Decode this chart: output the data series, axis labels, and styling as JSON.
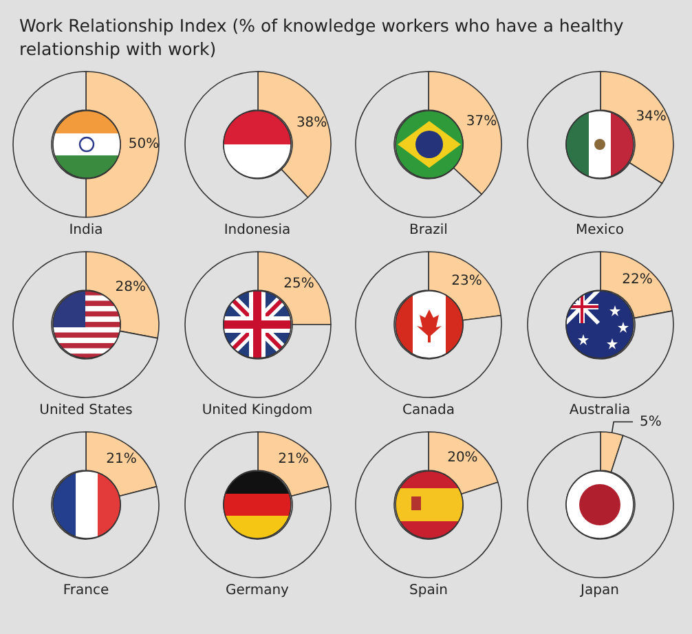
{
  "chart_data": [
    {
      "type": "donut",
      "title": "Work Relationship Index (% of knowledge workers who have a healthy relationship with work)",
      "xlabel": "India",
      "categories": [
        null,
        null
      ],
      "values": [
        50,
        50
      ],
      "value_labels": [
        "50%",
        null
      ],
      "colors": [
        "#fdd09b",
        "#e0e0e0"
      ]
    },
    {
      "type": "donut",
      "xlabel": "Indonesia",
      "categories": [
        null,
        null
      ],
      "values": [
        38,
        62
      ],
      "value_labels": [
        "38%",
        null
      ],
      "colors": [
        "#fdd09b",
        "#e0e0e0"
      ]
    },
    {
      "type": "donut",
      "xlabel": "Brazil",
      "categories": [
        null,
        null
      ],
      "values": [
        37,
        63
      ],
      "value_labels": [
        "37%",
        null
      ],
      "colors": [
        "#fdd09b",
        "#e0e0e0"
      ]
    },
    {
      "type": "donut",
      "xlabel": "Mexico",
      "categories": [
        null,
        null
      ],
      "values": [
        34,
        66
      ],
      "value_labels": [
        "34%",
        null
      ],
      "colors": [
        "#fdd09b",
        "#e0e0e0"
      ]
    },
    {
      "type": "donut",
      "xlabel": "United States",
      "categories": [
        null,
        null
      ],
      "values": [
        28,
        72
      ],
      "value_labels": [
        "28%",
        null
      ],
      "colors": [
        "#fdd09b",
        "#e0e0e0"
      ]
    },
    {
      "type": "donut",
      "xlabel": "United Kingdom",
      "categories": [
        null,
        null
      ],
      "values": [
        25,
        75
      ],
      "value_labels": [
        "25%",
        null
      ],
      "colors": [
        "#fdd09b",
        "#e0e0e0"
      ]
    },
    {
      "type": "donut",
      "xlabel": "Canada",
      "categories": [
        null,
        null
      ],
      "values": [
        23,
        77
      ],
      "value_labels": [
        "23%",
        null
      ],
      "colors": [
        "#fdd09b",
        "#e0e0e0"
      ]
    },
    {
      "type": "donut",
      "xlabel": "Australia",
      "categories": [
        null,
        null
      ],
      "values": [
        22,
        78
      ],
      "value_labels": [
        "22%",
        null
      ],
      "colors": [
        "#fdd09b",
        "#e0e0e0"
      ]
    },
    {
      "type": "donut",
      "xlabel": "France",
      "categories": [
        null,
        null
      ],
      "values": [
        21,
        79
      ],
      "value_labels": [
        "21%",
        null
      ],
      "colors": [
        "#fdd09b",
        "#e0e0e0"
      ]
    },
    {
      "type": "donut",
      "xlabel": "Germany",
      "categories": [
        null,
        null
      ],
      "values": [
        21,
        79
      ],
      "value_labels": [
        "21%",
        null
      ],
      "colors": [
        "#fdd09b",
        "#e0e0e0"
      ]
    },
    {
      "type": "donut",
      "xlabel": "Spain",
      "categories": [
        null,
        null
      ],
      "values": [
        20,
        80
      ],
      "value_labels": [
        "20%",
        null
      ],
      "colors": [
        "#fdd09b",
        "#e0e0e0"
      ]
    },
    {
      "type": "donut",
      "xlabel": "Japan",
      "categories": [
        null,
        null
      ],
      "values": [
        5,
        95
      ],
      "value_labels": [
        "5%",
        null
      ],
      "colors": [
        "#fdd09b",
        "#e0e0e0"
      ]
    }
  ]
}
